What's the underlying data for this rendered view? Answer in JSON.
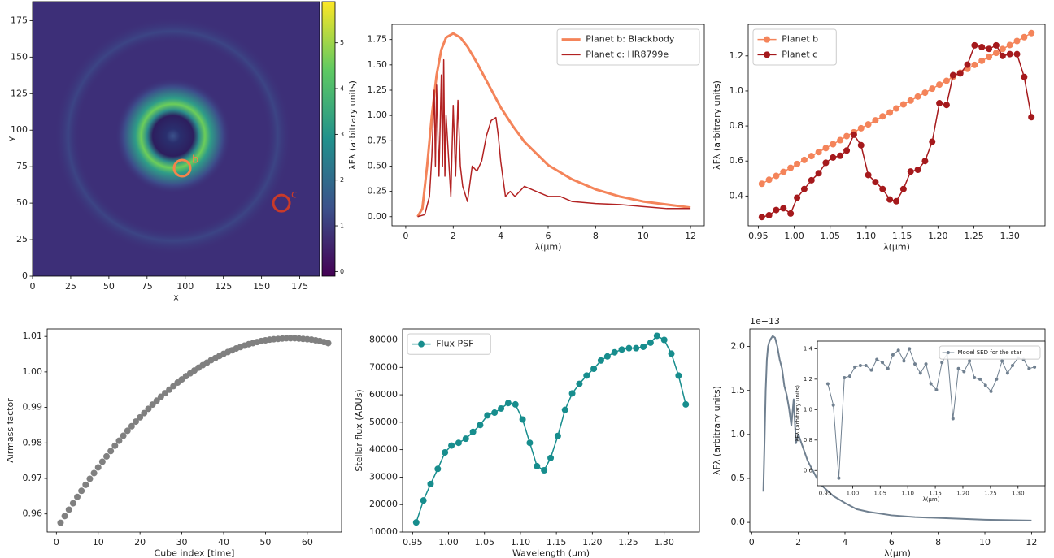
{
  "chart_data": [
    {
      "type": "image",
      "xlabel": "x",
      "ylabel": "y",
      "xlim": [
        0,
        188
      ],
      "ylim": [
        0,
        188
      ],
      "xticks": [
        0,
        25,
        50,
        75,
        100,
        125,
        150,
        175
      ],
      "yticks": [
        0,
        25,
        50,
        75,
        100,
        125,
        150,
        175
      ],
      "colorbar": {
        "lim": [
          -0.1,
          5.9
        ],
        "ticks": [
          0,
          1,
          2,
          3,
          4,
          5
        ]
      },
      "markers": [
        {
          "label": "b",
          "x": 98,
          "y": 74,
          "color": "#f4844c"
        },
        {
          "label": "c",
          "x": 163,
          "y": 50,
          "color": "#c83a2a"
        }
      ]
    },
    {
      "type": "line",
      "xlabel": "λ(μm)",
      "ylabel": "λFλ (arbitrary units)",
      "xlim": [
        -0.58,
        12.58
      ],
      "ylim": [
        -0.09,
        1.9
      ],
      "xticks": [
        0,
        2,
        4,
        6,
        8,
        10,
        12
      ],
      "yticks": [
        {
          "value": 0,
          "label": "0.00"
        },
        {
          "value": 0.25,
          "label": "0.25"
        },
        {
          "value": 0.5,
          "label": "0.50"
        },
        {
          "value": 0.75,
          "label": "0.75"
        },
        {
          "value": 1,
          "label": "1.00"
        },
        {
          "value": 1.25,
          "label": "1.25"
        },
        {
          "value": 1.5,
          "label": "1.50"
        },
        {
          "value": 1.75,
          "label": "1.75"
        }
      ],
      "legend": "upper right",
      "series": [
        {
          "name": "Planet b: Blackbody",
          "color": "#f4845a",
          "width": 3,
          "x": [
            0.5,
            0.7,
            0.9,
            1.1,
            1.3,
            1.5,
            1.7,
            2.0,
            2.3,
            2.6,
            3,
            3.5,
            4,
            4.5,
            5,
            6,
            7,
            8,
            9,
            10,
            11,
            12
          ],
          "values": [
            0.0,
            0.08,
            0.5,
            1.0,
            1.4,
            1.65,
            1.77,
            1.81,
            1.77,
            1.68,
            1.52,
            1.3,
            1.08,
            0.9,
            0.74,
            0.51,
            0.37,
            0.27,
            0.2,
            0.15,
            0.12,
            0.09
          ]
        },
        {
          "name": "Planet c: HR8799e",
          "color": "#b22222",
          "width": 1.5,
          "x": [
            0.5,
            0.8,
            1.0,
            1.1,
            1.2,
            1.25,
            1.3,
            1.4,
            1.5,
            1.55,
            1.6,
            1.65,
            1.7,
            1.8,
            1.9,
            2.0,
            2.1,
            2.2,
            2.3,
            2.4,
            2.6,
            2.8,
            3.0,
            3.2,
            3.4,
            3.6,
            3.8,
            3.9,
            4.0,
            4.2,
            4.4,
            4.6,
            5,
            5.5,
            6,
            6.5,
            7,
            8,
            9,
            10,
            11,
            12
          ],
          "values": [
            0,
            0.02,
            0.2,
            0.6,
            1.25,
            0.5,
            1.3,
            0.4,
            1.4,
            0.5,
            1.55,
            0.4,
            1.0,
            0.6,
            0.2,
            1.1,
            0.4,
            1.15,
            0.5,
            0.3,
            0.15,
            0.5,
            0.45,
            0.55,
            0.8,
            0.95,
            0.98,
            0.8,
            0.55,
            0.2,
            0.25,
            0.2,
            0.3,
            0.25,
            0.2,
            0.2,
            0.15,
            0.13,
            0.12,
            0.1,
            0.08,
            0.08
          ]
        }
      ]
    },
    {
      "type": "line",
      "xlabel": "λ(μm)",
      "ylabel": "λFλ (arbitrary units)",
      "xlim": [
        0.936,
        1.349
      ],
      "ylim": [
        0.23,
        1.38
      ],
      "xticks": [
        0.95,
        {
          "value": 1,
          "label": "1.00"
        },
        1.05,
        {
          "value": 1.1,
          "label": "1.10"
        },
        1.15,
        {
          "value": 1.2,
          "label": "1.20"
        },
        1.25,
        {
          "value": 1.3,
          "label": "1.30"
        }
      ],
      "yticks": [
        0.4,
        0.6,
        0.8,
        {
          "value": 1,
          "label": "1.0"
        },
        1.2
      ],
      "legend": "upper left",
      "x": [
        0.955,
        0.965,
        0.975,
        0.985,
        0.995,
        1.004,
        1.014,
        1.024,
        1.034,
        1.044,
        1.054,
        1.064,
        1.073,
        1.083,
        1.093,
        1.103,
        1.113,
        1.123,
        1.133,
        1.142,
        1.152,
        1.162,
        1.172,
        1.182,
        1.192,
        1.202,
        1.212,
        1.221,
        1.231,
        1.241,
        1.251,
        1.261,
        1.271,
        1.281,
        1.29,
        1.3,
        1.31,
        1.32,
        1.33
      ],
      "series": [
        {
          "name": "Planet b",
          "color": "#f4845a",
          "width": 1.5,
          "markers": true,
          "values": [
            0.47,
            0.493,
            0.515,
            0.538,
            0.561,
            0.583,
            0.606,
            0.628,
            0.651,
            0.674,
            0.696,
            0.719,
            0.742,
            0.764,
            0.787,
            0.809,
            0.832,
            0.855,
            0.877,
            0.9,
            0.923,
            0.945,
            0.968,
            0.99,
            1.013,
            1.036,
            1.058,
            1.081,
            1.104,
            1.126,
            1.149,
            1.172,
            1.194,
            1.217,
            1.239,
            1.262,
            1.285,
            1.307,
            1.33
          ]
        },
        {
          "name": "Planet c",
          "color": "#a5191c",
          "width": 1.5,
          "markers": true,
          "values": [
            0.28,
            0.29,
            0.32,
            0.33,
            0.3,
            0.39,
            0.44,
            0.49,
            0.53,
            0.59,
            0.62,
            0.63,
            0.66,
            0.75,
            0.69,
            0.52,
            0.48,
            0.44,
            0.38,
            0.37,
            0.44,
            0.54,
            0.55,
            0.6,
            0.71,
            0.93,
            0.92,
            1.09,
            1.1,
            1.15,
            1.26,
            1.25,
            1.24,
            1.26,
            1.2,
            1.21,
            1.21,
            1.08,
            0.85
          ]
        }
      ]
    },
    {
      "type": "scatter",
      "xlabel": "Cube index [time]",
      "ylabel": "Airmass factor",
      "xlim": [
        -2.2,
        68.2
      ],
      "ylim": [
        0.9549,
        1.0121
      ],
      "xticks": [
        0,
        10,
        20,
        30,
        40,
        50,
        60
      ],
      "yticks": [
        0.96,
        0.97,
        0.98,
        0.99,
        {
          "value": 1,
          "label": "1.00"
        },
        1.01
      ],
      "x": [
        1,
        2,
        3,
        4,
        5,
        6,
        7,
        8,
        9,
        10,
        11,
        12,
        13,
        14,
        15,
        16,
        17,
        18,
        19,
        20,
        21,
        22,
        23,
        24,
        25,
        26,
        27,
        28,
        29,
        30,
        31,
        32,
        33,
        34,
        35,
        36,
        37,
        38,
        39,
        40,
        41,
        42,
        43,
        44,
        45,
        46,
        47,
        48,
        49,
        50,
        51,
        52,
        53,
        54,
        55,
        56,
        57,
        58,
        59,
        60,
        61,
        62,
        63,
        64,
        65
      ],
      "series": [
        {
          "color": "#808080",
          "markers": true,
          "values": [
            0.9575,
            0.9594,
            0.9612,
            0.963,
            0.9648,
            0.9665,
            0.9682,
            0.9699,
            0.9715,
            0.9731,
            0.9747,
            0.9762,
            0.9777,
            0.9792,
            0.9806,
            0.982,
            0.9834,
            0.9847,
            0.986,
            0.9872,
            0.9884,
            0.9896,
            0.9908,
            0.9919,
            0.993,
            0.994,
            0.995,
            0.996,
            0.997,
            0.9979,
            0.9988,
            0.9996,
            1.0004,
            1.0012,
            1.0019,
            1.0026,
            1.0033,
            1.0039,
            1.0045,
            1.0051,
            1.0056,
            1.0061,
            1.0066,
            1.007,
            1.0074,
            1.0078,
            1.0081,
            1.0084,
            1.0087,
            1.0089,
            1.0091,
            1.0092,
            1.0093,
            1.0094,
            1.0095,
            1.0095,
            1.0095,
            1.0094,
            1.0093,
            1.0092,
            1.0091,
            1.0089,
            1.0087,
            1.0084,
            1.0081
          ]
        }
      ]
    },
    {
      "type": "line",
      "xlabel": "Wavelength (μm)",
      "ylabel": "Stellar flux (ADUs)",
      "xlim": [
        0.936,
        1.349
      ],
      "ylim": [
        10000,
        84000
      ],
      "xticks": [
        0.95,
        {
          "value": 1,
          "label": "1.00"
        },
        1.05,
        {
          "value": 1.1,
          "label": "1.10"
        },
        1.15,
        {
          "value": 1.2,
          "label": "1.20"
        },
        1.25,
        {
          "value": 1.3,
          "label": "1.30"
        }
      ],
      "yticks": [
        10000,
        20000,
        30000,
        40000,
        50000,
        60000,
        70000,
        80000
      ],
      "legend": "upper left",
      "x": [
        0.955,
        0.965,
        0.975,
        0.985,
        0.995,
        1.004,
        1.014,
        1.024,
        1.034,
        1.044,
        1.054,
        1.064,
        1.073,
        1.083,
        1.093,
        1.103,
        1.113,
        1.123,
        1.133,
        1.142,
        1.152,
        1.162,
        1.172,
        1.182,
        1.192,
        1.202,
        1.212,
        1.221,
        1.231,
        1.241,
        1.251,
        1.261,
        1.271,
        1.281,
        1.29,
        1.3,
        1.31,
        1.32,
        1.33
      ],
      "series": [
        {
          "name": "Flux PSF",
          "color": "#178d8d",
          "width": 1.5,
          "markers": true,
          "values": [
            13500,
            21500,
            27500,
            33000,
            39000,
            41500,
            42500,
            44000,
            46500,
            49000,
            52500,
            53500,
            55000,
            57000,
            56500,
            51000,
            42500,
            34000,
            32500,
            37000,
            45000,
            54500,
            60500,
            64000,
            67000,
            69500,
            72500,
            74000,
            75500,
            76500,
            77000,
            77000,
            77500,
            79000,
            81500,
            80000,
            75000,
            67000,
            56500
          ]
        }
      ]
    },
    {
      "type": "line",
      "xlabel": "λ(μm)",
      "ylabel": "λFλ (arbitrary units)",
      "offset_label": "1e−13",
      "xlim": [
        -0.08,
        12.58
      ],
      "ylim": [
        -0.11,
        2.2
      ],
      "xticks": [
        0,
        2,
        4,
        6,
        8,
        10,
        12
      ],
      "yticks": [
        {
          "value": 0,
          "label": "0.0"
        },
        0.5,
        {
          "value": 1,
          "label": "1.0"
        },
        1.5,
        {
          "value": 2,
          "label": "2.0"
        }
      ],
      "series": [
        {
          "color": "#708090",
          "width": 2,
          "x": [
            0.5,
            0.55,
            0.6,
            0.65,
            0.7,
            0.75,
            0.8,
            0.9,
            1.0,
            1.1,
            1.2,
            1.3,
            1.4,
            1.5,
            1.6,
            1.7,
            1.8,
            1.9,
            2.0,
            2.2,
            2.4,
            2.6,
            2.8,
            3.0,
            3.5,
            4.0,
            4.5,
            5,
            6,
            7,
            8,
            9,
            10,
            11,
            12
          ],
          "values": [
            0.35,
            0.9,
            1.5,
            1.85,
            2.0,
            2.05,
            2.08,
            2.12,
            2.1,
            2.0,
            1.85,
            1.75,
            1.55,
            1.45,
            1.3,
            1.1,
            1.4,
            0.9,
            1.0,
            0.85,
            0.7,
            0.6,
            0.5,
            0.42,
            0.3,
            0.22,
            0.15,
            0.12,
            0.08,
            0.06,
            0.05,
            0.04,
            0.03,
            0.025,
            0.02
          ]
        }
      ],
      "inset": {
        "type": "line",
        "xlabel": "λ(μm)",
        "ylabel": "λFλ (arbitrary units)",
        "xlim": [
          0.936,
          1.349
        ],
        "ylim": [
          0.5,
          1.45
        ],
        "xticks": [
          0.95,
          {
            "value": 1,
            "label": "1.00"
          },
          1.05,
          {
            "value": 1.1,
            "label": "1.10"
          },
          1.15,
          {
            "value": 1.2,
            "label": "1.20"
          },
          1.25,
          {
            "value": 1.3,
            "label": "1.30"
          }
        ],
        "yticks": [
          0.6,
          0.8,
          {
            "value": 1,
            "label": "1.0"
          },
          1.2,
          1.4
        ],
        "legend": "upper right",
        "x": [
          0.955,
          0.965,
          0.975,
          0.985,
          0.995,
          1.004,
          1.014,
          1.024,
          1.034,
          1.044,
          1.054,
          1.064,
          1.073,
          1.083,
          1.093,
          1.103,
          1.113,
          1.123,
          1.133,
          1.142,
          1.152,
          1.162,
          1.172,
          1.182,
          1.192,
          1.202,
          1.212,
          1.221,
          1.231,
          1.241,
          1.251,
          1.261,
          1.271,
          1.281,
          1.29,
          1.3,
          1.31,
          1.32,
          1.33
        ],
        "series": [
          {
            "name": "Model SED for the star",
            "color": "#708090",
            "width": 1,
            "markers": true,
            "values": [
              1.17,
              1.03,
              0.55,
              1.21,
              1.22,
              1.28,
              1.29,
              1.29,
              1.26,
              1.33,
              1.31,
              1.27,
              1.36,
              1.39,
              1.32,
              1.4,
              1.3,
              1.24,
              1.3,
              1.17,
              1.13,
              1.31,
              1.37,
              0.94,
              1.27,
              1.25,
              1.32,
              1.21,
              1.2,
              1.16,
              1.12,
              1.2,
              1.32,
              1.24,
              1.29,
              1.34,
              1.33,
              1.27,
              1.28
            ]
          }
        ]
      }
    }
  ]
}
